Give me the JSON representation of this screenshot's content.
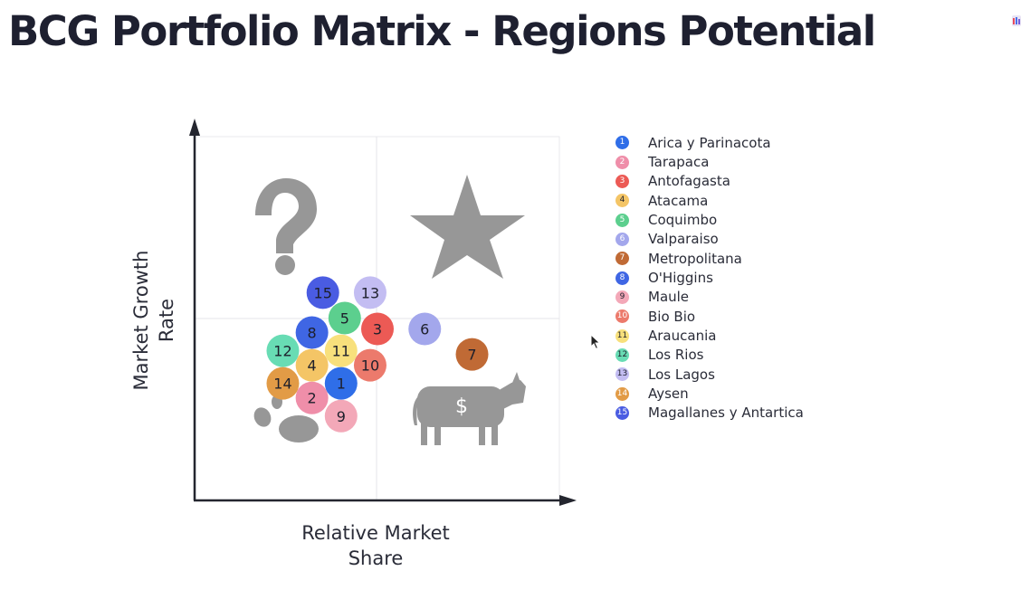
{
  "title": "BCG Portfolio Matrix - Regions Potential",
  "chart_data": {
    "type": "scatter",
    "title": "BCG Portfolio Matrix - Regions Potential",
    "xlabel": "Relative Market Share",
    "ylabel": "Market Growth Rate",
    "xlabel_lines": [
      "Relative Market",
      "Share"
    ],
    "ylabel_lines": [
      "Market Growth",
      "Rate"
    ],
    "quadrant_icons": {
      "top_left": "question-mark-icon",
      "top_right": "star-icon",
      "bottom_left": "dog-paw-icon",
      "bottom_right": "cash-cow-icon"
    },
    "cow_symbol": "$",
    "grid": true,
    "legend_position": "right",
    "x_axis_scale": "unlabeled, no ticks",
    "y_axis_scale": "unlabeled, no ticks",
    "note": "Axes carry no tick labels; x and y are expressed as positions from 0 to 1 across the plot area (0 = origin, 1 = far end of each axis).",
    "points": [
      {
        "id": "1",
        "name": "Arica y Parinacota",
        "x": 0.4,
        "y": 0.32,
        "color": "#2f6ee8"
      },
      {
        "id": "2",
        "name": "Tarapaca",
        "x": 0.32,
        "y": 0.28,
        "color": "#ef8ea9"
      },
      {
        "id": "3",
        "name": "Antofagasta",
        "x": 0.5,
        "y": 0.47,
        "color": "#ec5a55"
      },
      {
        "id": "4",
        "name": "Atacama",
        "x": 0.32,
        "y": 0.37,
        "color": "#f4c566"
      },
      {
        "id": "5",
        "name": "Coquimbo",
        "x": 0.41,
        "y": 0.5,
        "color": "#5ccf8e"
      },
      {
        "id": "6",
        "name": "Valparaiso",
        "x": 0.63,
        "y": 0.47,
        "color": "#a3a7ec"
      },
      {
        "id": "7",
        "name": "Metropolitana",
        "x": 0.76,
        "y": 0.4,
        "color": "#c06a35"
      },
      {
        "id": "8",
        "name": "O'Higgins",
        "x": 0.32,
        "y": 0.46,
        "color": "#3f66e4"
      },
      {
        "id": "9",
        "name": "Maule",
        "x": 0.4,
        "y": 0.23,
        "color": "#f3a8b8"
      },
      {
        "id": "10",
        "name": "Bio Bio",
        "x": 0.48,
        "y": 0.37,
        "color": "#ec7a6c"
      },
      {
        "id": "11",
        "name": "Araucania",
        "x": 0.4,
        "y": 0.41,
        "color": "#f8e07c"
      },
      {
        "id": "12",
        "name": "Los Rios",
        "x": 0.24,
        "y": 0.41,
        "color": "#68dcb4"
      },
      {
        "id": "13",
        "name": "Los Lagos",
        "x": 0.48,
        "y": 0.57,
        "color": "#c3bdf2"
      },
      {
        "id": "14",
        "name": "Aysen",
        "x": 0.24,
        "y": 0.32,
        "color": "#e29b46"
      },
      {
        "id": "15",
        "name": "Magallanes y Antartica",
        "x": 0.35,
        "y": 0.57,
        "color": "#4a5ce2"
      }
    ]
  }
}
